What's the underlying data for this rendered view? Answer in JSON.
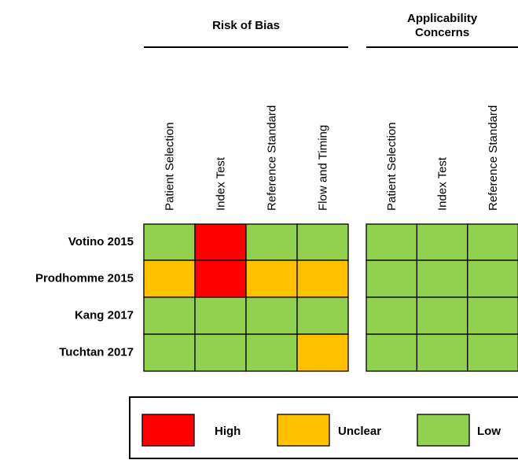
{
  "groups": [
    {
      "label_lines": [
        "Risk of Bias"
      ],
      "columns": [
        "Patient Selection",
        "Index Test",
        "Reference Standard",
        "Flow and Timing"
      ]
    },
    {
      "label_lines": [
        "Applicability",
        "Concerns"
      ],
      "columns": [
        "Patient Selection",
        "Index Test",
        "Reference Standard"
      ]
    }
  ],
  "rows": [
    {
      "study": "Votino 2015",
      "ratings": [
        [
          "Low",
          "High",
          "Low",
          "Low"
        ],
        [
          "Low",
          "Low",
          "Low"
        ]
      ]
    },
    {
      "study": "Prodhomme 2015",
      "ratings": [
        [
          "Unclear",
          "High",
          "Unclear",
          "Unclear"
        ],
        [
          "Low",
          "Low",
          "Low"
        ]
      ]
    },
    {
      "study": "Kang 2017",
      "ratings": [
        [
          "Low",
          "Low",
          "Low",
          "Low"
        ],
        [
          "Low",
          "Low",
          "Low"
        ]
      ]
    },
    {
      "study": "Tuchtan 2017",
      "ratings": [
        [
          "Low",
          "Low",
          "Low",
          "Unclear"
        ],
        [
          "Low",
          "Low",
          "Low"
        ]
      ]
    }
  ],
  "legend": [
    {
      "label": "High",
      "color": "#ff0000"
    },
    {
      "label": "Unclear",
      "color": "#ffc000"
    },
    {
      "label": "Low",
      "color": "#92d050"
    }
  ]
}
